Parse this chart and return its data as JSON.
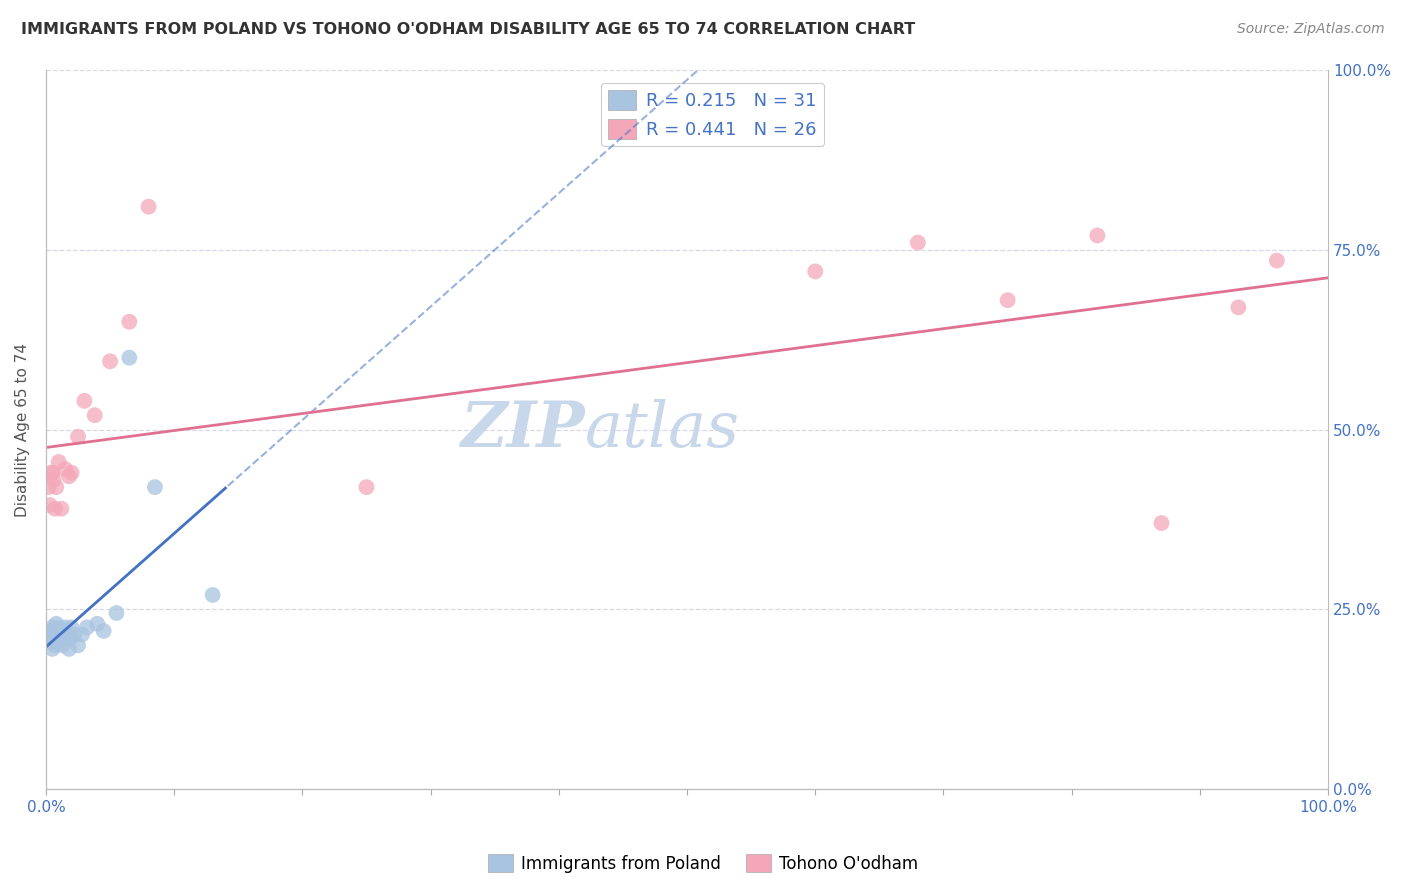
{
  "title": "IMMIGRANTS FROM POLAND VS TOHONO O'ODHAM DISABILITY AGE 65 TO 74 CORRELATION CHART",
  "source": "Source: ZipAtlas.com",
  "ylabel": "Disability Age 65 to 74",
  "xlim": [
    0,
    1.0
  ],
  "ylim": [
    0,
    1.0
  ],
  "x_ticks": [
    0.0,
    0.1,
    0.2,
    0.3,
    0.4,
    0.5,
    0.6,
    0.7,
    0.8,
    0.9,
    1.0
  ],
  "y_ticks": [
    0.0,
    0.25,
    0.5,
    0.75,
    1.0
  ],
  "poland_R": 0.215,
  "poland_N": 31,
  "tohono_R": 0.441,
  "tohono_N": 26,
  "poland_color": "#a8c4e0",
  "tohono_color": "#f4a7b9",
  "poland_line_color": "#4472c4",
  "tohono_line_color": "#e07090",
  "legend_text_color": "#4472c4",
  "title_color": "#333333",
  "source_color": "#888888",
  "watermark_color": "#c8d8ea",
  "background_color": "#ffffff",
  "grid_color": "#d8d8e8",
  "poland_x": [
    0.002,
    0.003,
    0.004,
    0.005,
    0.005,
    0.006,
    0.007,
    0.008,
    0.008,
    0.009,
    0.01,
    0.011,
    0.012,
    0.013,
    0.014,
    0.015,
    0.016,
    0.017,
    0.018,
    0.019,
    0.02,
    0.022,
    0.025,
    0.028,
    0.032,
    0.04,
    0.045,
    0.055,
    0.065,
    0.085,
    0.13
  ],
  "poland_y": [
    0.215,
    0.205,
    0.22,
    0.195,
    0.225,
    0.21,
    0.2,
    0.23,
    0.215,
    0.205,
    0.225,
    0.215,
    0.22,
    0.2,
    0.215,
    0.225,
    0.21,
    0.215,
    0.195,
    0.21,
    0.225,
    0.215,
    0.2,
    0.215,
    0.225,
    0.23,
    0.22,
    0.245,
    0.6,
    0.42,
    0.27
  ],
  "tohono_x": [
    0.002,
    0.003,
    0.004,
    0.005,
    0.006,
    0.007,
    0.008,
    0.01,
    0.012,
    0.015,
    0.018,
    0.02,
    0.025,
    0.03,
    0.038,
    0.05,
    0.065,
    0.08,
    0.25,
    0.6,
    0.68,
    0.75,
    0.82,
    0.87,
    0.93,
    0.96
  ],
  "tohono_y": [
    0.42,
    0.395,
    0.44,
    0.44,
    0.43,
    0.39,
    0.42,
    0.455,
    0.39,
    0.445,
    0.435,
    0.44,
    0.49,
    0.54,
    0.52,
    0.595,
    0.65,
    0.81,
    0.42,
    0.72,
    0.76,
    0.68,
    0.77,
    0.37,
    0.67,
    0.735
  ]
}
